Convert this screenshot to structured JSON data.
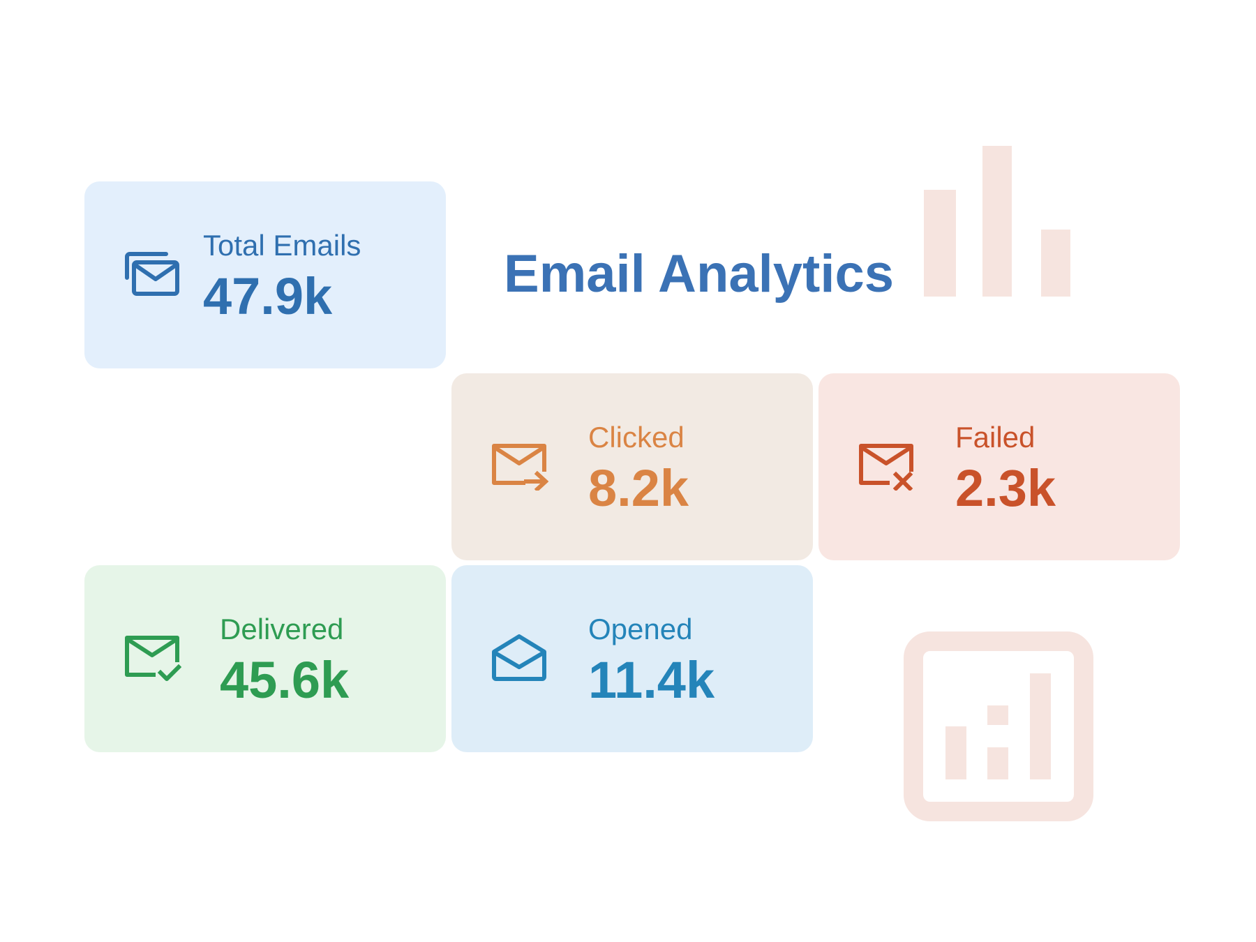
{
  "title": "Email Analytics",
  "accent_color": "#3b72b5",
  "cards": {
    "total": {
      "label": "Total Emails",
      "value": "47.9k",
      "icon": "stacked-envelopes-icon",
      "color": "#2f6faf",
      "background": "#e3effc"
    },
    "clicked": {
      "label": "Clicked",
      "value": "8.2k",
      "icon": "envelope-arrow-icon",
      "color": "#da8444",
      "background": "#f2eae3"
    },
    "failed": {
      "label": "Failed",
      "value": "2.3k",
      "icon": "envelope-x-icon",
      "color": "#c9522a",
      "background": "#f9e6e2"
    },
    "delivered": {
      "label": "Delivered",
      "value": "45.6k",
      "icon": "envelope-check-icon",
      "color": "#2e9c52",
      "background": "#e6f5e8"
    },
    "opened": {
      "label": "Opened",
      "value": "11.4k",
      "icon": "envelope-open-icon",
      "color": "#2484b9",
      "background": "#deedf8"
    }
  },
  "decorations": {
    "bar_chart_icon": "bar-chart-icon",
    "chart_box_icon": "chart-box-icon",
    "color": "#f6e4df"
  }
}
